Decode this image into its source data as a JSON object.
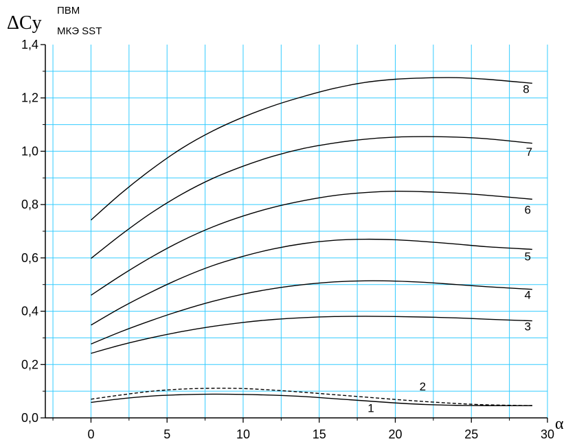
{
  "chart_data": {
    "type": "line",
    "ylabel": "ΔCy",
    "ylabel_superscript": "ПВМ",
    "ylabel_subscript": "МКЭ SST",
    "xlabel": "α",
    "xlim": [
      -3,
      30
    ],
    "ylim": [
      0.0,
      1.4
    ],
    "x_ticks": [
      0,
      5,
      10,
      15,
      20,
      25,
      30
    ],
    "y_ticks": [
      0.0,
      0.2,
      0.4,
      0.6,
      0.8,
      1.0,
      1.2,
      1.4
    ],
    "y_tick_labels": [
      "0,0",
      "0,2",
      "0,4",
      "0,6",
      "0,8",
      "1,0",
      "1,2",
      "1,4"
    ],
    "grid": true,
    "grid_color": "#33ccff",
    "line_color": "#000000",
    "series": [
      {
        "name": "1",
        "dashed": false,
        "label_at": [
          18.4,
          0.022
        ],
        "x": [
          0,
          2,
          4,
          6,
          8,
          10,
          12,
          14,
          16,
          18,
          20,
          22,
          24,
          26,
          29
        ],
        "y": [
          0.058,
          0.072,
          0.082,
          0.087,
          0.089,
          0.088,
          0.085,
          0.08,
          0.072,
          0.064,
          0.056,
          0.05,
          0.047,
          0.046,
          0.046
        ]
      },
      {
        "name": "2",
        "dashed": true,
        "label_at": [
          21.8,
          0.103
        ],
        "x": [
          0,
          2,
          4,
          6,
          8,
          10,
          12,
          14,
          16,
          18,
          20,
          22,
          24,
          26,
          29
        ],
        "y": [
          0.07,
          0.086,
          0.1,
          0.108,
          0.111,
          0.11,
          0.104,
          0.096,
          0.087,
          0.078,
          0.069,
          0.061,
          0.054,
          0.049,
          0.046
        ]
      },
      {
        "name": "3",
        "dashed": false,
        "label_at": [
          28.7,
          0.328
        ],
        "x": [
          0,
          2,
          4,
          6,
          8,
          10,
          12,
          14,
          16,
          18,
          20,
          22,
          24,
          26,
          29
        ],
        "y": [
          0.242,
          0.274,
          0.301,
          0.324,
          0.343,
          0.358,
          0.369,
          0.376,
          0.38,
          0.381,
          0.38,
          0.378,
          0.375,
          0.37,
          0.364
        ]
      },
      {
        "name": "4",
        "dashed": false,
        "label_at": [
          28.7,
          0.446
        ],
        "x": [
          0,
          2,
          4,
          6,
          8,
          10,
          12,
          14,
          16,
          18,
          20,
          22,
          24,
          26,
          29
        ],
        "y": [
          0.277,
          0.324,
          0.366,
          0.404,
          0.437,
          0.464,
          0.485,
          0.5,
          0.51,
          0.514,
          0.513,
          0.508,
          0.5,
          0.492,
          0.482
        ]
      },
      {
        "name": "5",
        "dashed": false,
        "label_at": [
          28.7,
          0.59
        ],
        "x": [
          0,
          2,
          4,
          6,
          8,
          10,
          12,
          14,
          16,
          18,
          20,
          22,
          24,
          26,
          29
        ],
        "y": [
          0.348,
          0.414,
          0.473,
          0.526,
          0.571,
          0.606,
          0.634,
          0.654,
          0.666,
          0.67,
          0.668,
          0.661,
          0.652,
          0.642,
          0.632
        ]
      },
      {
        "name": "6",
        "dashed": false,
        "label_at": [
          28.7,
          0.765
        ],
        "x": [
          0,
          2,
          4,
          6,
          8,
          10,
          12,
          14,
          16,
          18,
          20,
          22,
          24,
          26,
          29
        ],
        "y": [
          0.46,
          0.535,
          0.604,
          0.665,
          0.716,
          0.757,
          0.79,
          0.815,
          0.834,
          0.845,
          0.85,
          0.848,
          0.843,
          0.835,
          0.82
        ]
      },
      {
        "name": "7",
        "dashed": false,
        "label_at": [
          28.8,
          0.983
        ],
        "x": [
          0,
          2,
          4,
          6,
          8,
          10,
          12,
          14,
          16,
          18,
          20,
          22,
          24,
          26,
          29
        ],
        "y": [
          0.598,
          0.688,
          0.77,
          0.84,
          0.898,
          0.944,
          0.982,
          1.011,
          1.031,
          1.045,
          1.053,
          1.055,
          1.053,
          1.047,
          1.03
        ]
      },
      {
        "name": "8",
        "dashed": false,
        "label_at": [
          28.6,
          1.218
        ],
        "x": [
          0,
          2,
          4,
          6,
          8,
          10,
          12,
          14,
          16,
          18,
          20,
          22,
          24,
          26,
          29
        ],
        "y": [
          0.742,
          0.843,
          0.933,
          1.012,
          1.076,
          1.128,
          1.171,
          1.206,
          1.236,
          1.258,
          1.27,
          1.275,
          1.276,
          1.27,
          1.255
        ]
      }
    ]
  }
}
